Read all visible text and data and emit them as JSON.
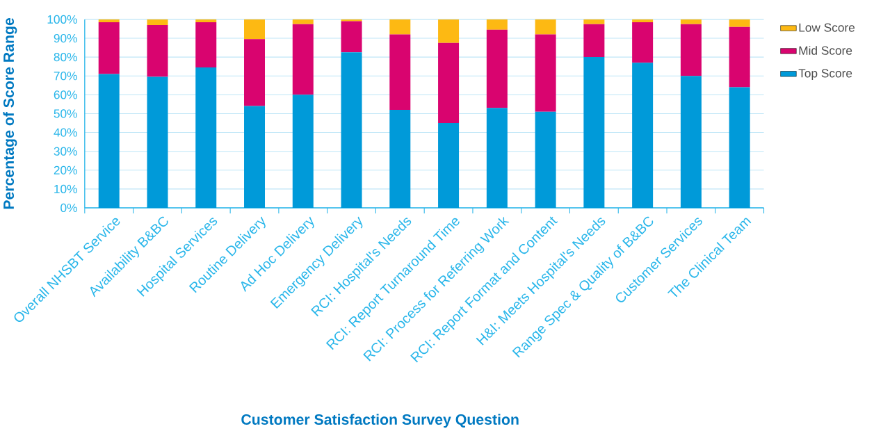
{
  "chart_data": {
    "type": "bar",
    "stacked": true,
    "xlabel": "Customer Satisfaction Survey Question",
    "ylabel": "Percentage of Score Range",
    "categories": [
      "Overall NHSBT Service",
      "Availability B&BC",
      "Hospital Services",
      "Routine Delivery",
      "Ad Hoc Delivery",
      "Emergency Delivery",
      "RCI: Hospital's Needs",
      "RCI: Report Turnaround Time",
      "RCI: Process for Referring Work",
      "RCI: Report Format and Content",
      "H&I: Meets Hospital's Needs",
      "Range Spec & Quality of B&BC",
      "Customer Services",
      "The Clinical Team"
    ],
    "series": [
      {
        "name": "Top Score",
        "color": "#009ad9",
        "values": [
          71,
          69.5,
          74.5,
          54,
          60,
          82.5,
          52,
          45,
          53,
          51,
          80,
          77,
          70,
          64
        ]
      },
      {
        "name": "Mid Score",
        "color": "#d9046f",
        "values": [
          27.5,
          27.5,
          24,
          35.5,
          37.5,
          16.5,
          40,
          42.5,
          41.5,
          41,
          17.5,
          21.5,
          27.5,
          32
        ]
      },
      {
        "name": "Low Score",
        "color": "#fdb913",
        "values": [
          1.5,
          3,
          1.5,
          10.5,
          2.5,
          1,
          8,
          12.5,
          5.5,
          8,
          2.5,
          1.5,
          2.5,
          4
        ]
      }
    ],
    "ylim": [
      0,
      100
    ],
    "yticks": [
      {
        "value": 0,
        "label": "0%"
      },
      {
        "value": 10,
        "label": "10%"
      },
      {
        "value": 20,
        "label": "20%"
      },
      {
        "value": 30,
        "label": "30%"
      },
      {
        "value": 40,
        "label": "40%"
      },
      {
        "value": 50,
        "label": "50%"
      },
      {
        "value": 60,
        "label": "60%"
      },
      {
        "value": 70,
        "label": "70%"
      },
      {
        "value": 80,
        "label": "80%"
      },
      {
        "value": 90,
        "label": "90%"
      },
      {
        "value": 100,
        "label": "100%"
      }
    ],
    "grid": "y",
    "legend": "top right"
  }
}
